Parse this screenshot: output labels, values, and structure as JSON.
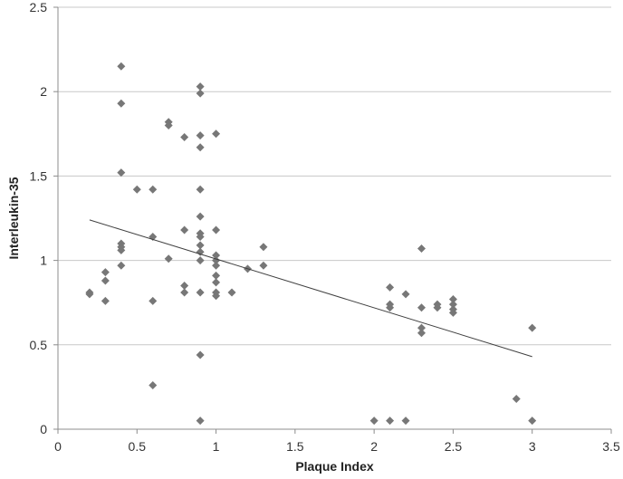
{
  "chart_data": {
    "type": "scatter",
    "title": "",
    "xlabel": "Plaque Index",
    "ylabel": "Interleukin-35",
    "xlim": [
      0,
      3.5
    ],
    "ylim": [
      0,
      2.5
    ],
    "x_ticks": [
      "0",
      "0.5",
      "1",
      "1.5",
      "2",
      "2.5",
      "3",
      "3.5"
    ],
    "y_ticks": [
      "0",
      "0.5",
      "1",
      "1.5",
      "2",
      "2.5"
    ],
    "grid": "horizontal",
    "legend": "none",
    "marker": "diamond",
    "marker_color": "#777777",
    "trendline": {
      "type": "linear",
      "x": [
        0.2,
        3.0
      ],
      "y": [
        1.24,
        0.43
      ],
      "color": "#404040"
    },
    "points": [
      {
        "x": 0.2,
        "y": 0.81
      },
      {
        "x": 0.2,
        "y": 0.8
      },
      {
        "x": 0.3,
        "y": 0.93
      },
      {
        "x": 0.3,
        "y": 0.88
      },
      {
        "x": 0.3,
        "y": 0.76
      },
      {
        "x": 0.4,
        "y": 2.15
      },
      {
        "x": 0.4,
        "y": 1.93
      },
      {
        "x": 0.4,
        "y": 1.52
      },
      {
        "x": 0.4,
        "y": 1.1
      },
      {
        "x": 0.4,
        "y": 1.08
      },
      {
        "x": 0.4,
        "y": 1.06
      },
      {
        "x": 0.4,
        "y": 0.97
      },
      {
        "x": 0.5,
        "y": 1.42
      },
      {
        "x": 0.6,
        "y": 1.42
      },
      {
        "x": 0.6,
        "y": 1.14
      },
      {
        "x": 0.6,
        "y": 0.76
      },
      {
        "x": 0.6,
        "y": 0.26
      },
      {
        "x": 0.7,
        "y": 1.82
      },
      {
        "x": 0.7,
        "y": 1.8
      },
      {
        "x": 0.7,
        "y": 1.01
      },
      {
        "x": 0.8,
        "y": 1.73
      },
      {
        "x": 0.8,
        "y": 1.18
      },
      {
        "x": 0.8,
        "y": 0.85
      },
      {
        "x": 0.8,
        "y": 0.81
      },
      {
        "x": 0.9,
        "y": 2.03
      },
      {
        "x": 0.9,
        "y": 1.99
      },
      {
        "x": 0.9,
        "y": 1.74
      },
      {
        "x": 0.9,
        "y": 1.67
      },
      {
        "x": 0.9,
        "y": 1.42
      },
      {
        "x": 0.9,
        "y": 1.26
      },
      {
        "x": 0.9,
        "y": 1.16
      },
      {
        "x": 0.9,
        "y": 1.14
      },
      {
        "x": 0.9,
        "y": 1.09
      },
      {
        "x": 0.9,
        "y": 1.05
      },
      {
        "x": 0.9,
        "y": 1.0
      },
      {
        "x": 0.9,
        "y": 0.81
      },
      {
        "x": 0.9,
        "y": 0.44
      },
      {
        "x": 0.9,
        "y": 0.05
      },
      {
        "x": 1.0,
        "y": 1.75
      },
      {
        "x": 1.0,
        "y": 1.18
      },
      {
        "x": 1.0,
        "y": 1.03
      },
      {
        "x": 1.0,
        "y": 1.0
      },
      {
        "x": 1.0,
        "y": 0.97
      },
      {
        "x": 1.0,
        "y": 0.91
      },
      {
        "x": 1.0,
        "y": 0.87
      },
      {
        "x": 1.0,
        "y": 0.81
      },
      {
        "x": 1.0,
        "y": 0.79
      },
      {
        "x": 1.1,
        "y": 0.81
      },
      {
        "x": 1.2,
        "y": 0.95
      },
      {
        "x": 1.3,
        "y": 1.08
      },
      {
        "x": 1.3,
        "y": 0.97
      },
      {
        "x": 2.0,
        "y": 0.05
      },
      {
        "x": 2.1,
        "y": 0.84
      },
      {
        "x": 2.1,
        "y": 0.74
      },
      {
        "x": 2.1,
        "y": 0.72
      },
      {
        "x": 2.1,
        "y": 0.05
      },
      {
        "x": 2.2,
        "y": 0.8
      },
      {
        "x": 2.2,
        "y": 0.05
      },
      {
        "x": 2.3,
        "y": 1.07
      },
      {
        "x": 2.3,
        "y": 0.72
      },
      {
        "x": 2.3,
        "y": 0.6
      },
      {
        "x": 2.3,
        "y": 0.57
      },
      {
        "x": 2.4,
        "y": 0.74
      },
      {
        "x": 2.4,
        "y": 0.72
      },
      {
        "x": 2.5,
        "y": 0.77
      },
      {
        "x": 2.5,
        "y": 0.74
      },
      {
        "x": 2.5,
        "y": 0.71
      },
      {
        "x": 2.5,
        "y": 0.69
      },
      {
        "x": 2.9,
        "y": 0.18
      },
      {
        "x": 3.0,
        "y": 0.6
      },
      {
        "x": 3.0,
        "y": 0.05
      }
    ]
  }
}
